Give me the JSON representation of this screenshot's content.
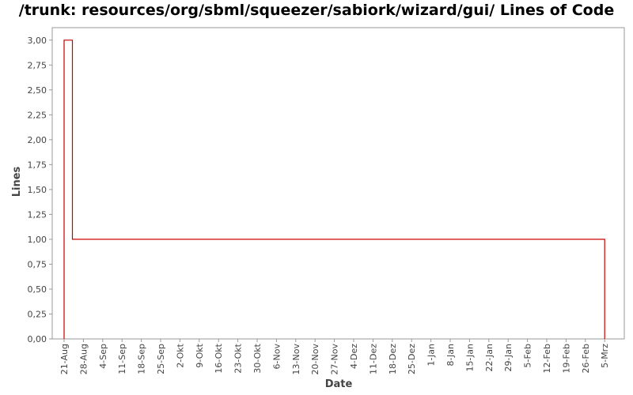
{
  "chart_data": {
    "type": "line",
    "title": "/trunk: resources/org/sbml/squeezer/sabiork/wizard/gui/ Lines of Code",
    "xlabel": "Date",
    "ylabel": "Lines",
    "ylim": [
      0,
      3.125
    ],
    "y_ticks": [
      "0,00",
      "0,25",
      "0,50",
      "0,75",
      "1,00",
      "1,25",
      "1,50",
      "1,75",
      "2,00",
      "2,25",
      "2,50",
      "2,75",
      "3,00"
    ],
    "x_ticks": [
      "21-Aug",
      "28-Aug",
      "4-Sep",
      "11-Sep",
      "18-Sep",
      "25-Sep",
      "2-Okt",
      "9-Okt",
      "16-Okt",
      "23-Okt",
      "30-Okt",
      "6-Nov",
      "13-Nov",
      "20-Nov",
      "27-Nov",
      "4-Dez",
      "11-Dez",
      "18-Dez",
      "25-Dez",
      "1-Jan",
      "8-Jan",
      "15-Jan",
      "22-Jan",
      "29-Jan",
      "5-Feb",
      "12-Feb",
      "19-Feb",
      "26-Feb",
      "5-Mrz"
    ],
    "series": [
      {
        "name": "",
        "color": "#cc0000",
        "step": true,
        "points": [
          {
            "x": "21-Aug",
            "y": 0
          },
          {
            "x": "21-Aug",
            "y": 3
          },
          {
            "x": "24-Aug",
            "y": 3
          },
          {
            "x": "24-Aug",
            "y": 1
          },
          {
            "x": "5-Mrz",
            "y": 1
          },
          {
            "x": "5-Mrz",
            "y": 0
          }
        ]
      }
    ],
    "grid": false,
    "legend": "none"
  }
}
